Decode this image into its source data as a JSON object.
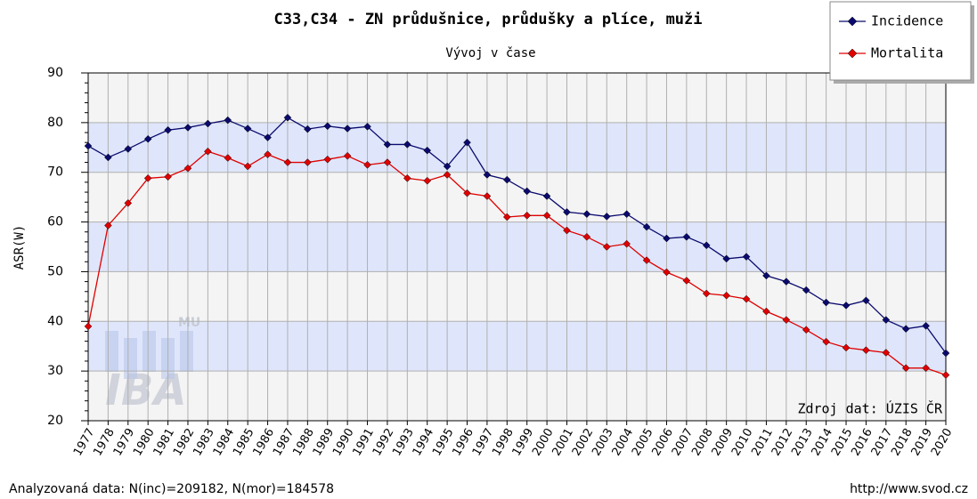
{
  "chart_data": {
    "type": "line",
    "title": "C33,C34 - ZN průdušnice, průdušky a plíce, muži",
    "subtitle": "Vývoj v čase",
    "y_label": "ASR(W)",
    "source": "Zdroj dat: ÚZIS ČR",
    "footer_left": "Analyzovaná data: N(inc)=209182, N(mor)=184578",
    "footer_right": "http://www.svod.cz",
    "watermark": "IBA",
    "watermark_small": "MU",
    "categories": [
      "1977",
      "1978",
      "1979",
      "1980",
      "1981",
      "1982",
      "1983",
      "1984",
      "1985",
      "1986",
      "1987",
      "1988",
      "1989",
      "1990",
      "1991",
      "1992",
      "1993",
      "1994",
      "1995",
      "1996",
      "1997",
      "1998",
      "1999",
      "2000",
      "2001",
      "2002",
      "2003",
      "2004",
      "2005",
      "2006",
      "2007",
      "2008",
      "2009",
      "2010",
      "2011",
      "2012",
      "2013",
      "2014",
      "2015",
      "2016",
      "2017",
      "2018",
      "2019",
      "2020"
    ],
    "series": [
      {
        "name": "Incidence",
        "color": "#0a0a6e",
        "values": [
          75.3,
          73,
          74.7,
          76.7,
          78.5,
          79,
          79.8,
          80.5,
          78.8,
          77,
          81,
          78.7,
          79.3,
          78.8,
          79.2,
          75.6,
          75.6,
          74.4,
          71.2,
          76,
          69.5,
          68.5,
          66.2,
          65.2,
          62,
          61.6,
          61.1,
          61.6,
          59,
          56.7,
          57,
          55.3,
          52.6,
          53,
          49.2,
          48,
          46.3,
          43.8,
          43.2,
          44.2,
          40.3,
          38.5,
          39.1,
          33.6
        ]
      },
      {
        "name": "Mortalita",
        "color": "#e00000",
        "values": [
          39,
          59.3,
          63.8,
          68.8,
          69.1,
          70.8,
          74.2,
          72.9,
          71.2,
          73.6,
          72,
          72,
          72.6,
          73.3,
          71.5,
          72,
          68.8,
          68.3,
          69.5,
          65.8,
          65.2,
          61,
          61.3,
          61.3,
          58.3,
          57,
          55,
          55.6,
          52.3,
          49.9,
          48.2,
          45.6,
          45.2,
          44.5,
          42,
          40.3,
          38.3,
          35.9,
          34.7,
          34.2,
          33.7,
          30.6,
          30.6,
          29.2
        ]
      }
    ],
    "ylim": [
      20,
      90
    ],
    "yticks": [
      20,
      30,
      40,
      50,
      60,
      70,
      80,
      90
    ],
    "band_colors": [
      "#f4f4f4",
      "#dfe6fb"
    ],
    "grid": true,
    "legend": "top-right"
  }
}
